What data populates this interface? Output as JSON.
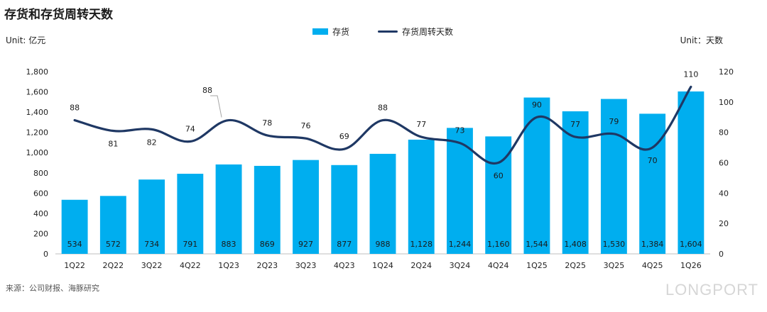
{
  "title": "存货和存货周转天数",
  "unit_left": "Unit: 亿元",
  "unit_right": "Unit：天数",
  "source": "来源：公司财报、海豚研究",
  "watermark": "LONGPORT",
  "chart_data": {
    "type": "bar",
    "categories": [
      "1Q22",
      "2Q22",
      "3Q22",
      "4Q22",
      "1Q23",
      "2Q23",
      "3Q23",
      "4Q23",
      "1Q24",
      "2Q24",
      "3Q24",
      "4Q24",
      "1Q25",
      "2Q25",
      "3Q25",
      "4Q25",
      "1Q26"
    ],
    "series": [
      {
        "name": "存货",
        "type": "bar",
        "axis": "left",
        "color": "#00AEEF",
        "values": [
          534,
          572,
          734,
          791,
          883,
          869,
          927,
          877,
          988,
          1128,
          1244,
          1160,
          1544,
          1408,
          1530,
          1384,
          1604
        ],
        "labels": [
          "534",
          "572",
          "734",
          "791",
          "883",
          "869",
          "927",
          "877",
          "988",
          "1,128",
          "1,244",
          "1,160",
          "1,544",
          "1,408",
          "1,530",
          "1,384",
          "1,604"
        ]
      },
      {
        "name": "存货周转天数",
        "type": "line",
        "axis": "right",
        "color": "#1F3864",
        "values": [
          88,
          81,
          82,
          74,
          88,
          78,
          76,
          69,
          88,
          77,
          73,
          60,
          90,
          77,
          79,
          70,
          110
        ]
      }
    ],
    "y_left": {
      "min": 0,
      "max": 1800,
      "ticks": [
        "0",
        "200",
        "400",
        "600",
        "800",
        "1,000",
        "1,200",
        "1,400",
        "1,600",
        "1,800"
      ]
    },
    "y_right": {
      "min": 0,
      "max": 120,
      "ticks": [
        "0",
        "20",
        "40",
        "60",
        "80",
        "100",
        "120"
      ]
    },
    "grid": false,
    "legend": "top-center"
  }
}
